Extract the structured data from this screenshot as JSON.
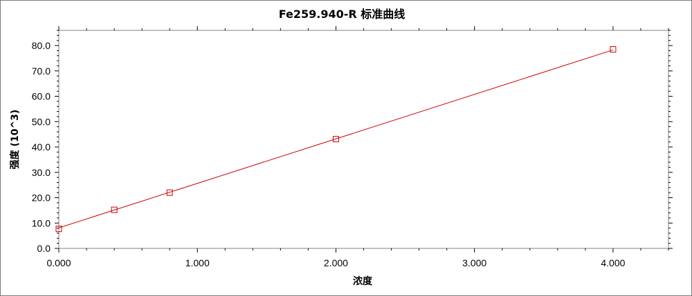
{
  "chart_data": {
    "type": "line",
    "title": "Fe259.940-R  标准曲线",
    "xlabel": "浓度",
    "ylabel": "强度 (10^3)",
    "xlim": [
      0.0,
      4.4
    ],
    "ylim": [
      0.0,
      86.0
    ],
    "x_ticks": [
      0.0,
      1.0,
      2.0,
      3.0,
      4.0
    ],
    "x_tick_labels": [
      "0.000",
      "1.000",
      "2.000",
      "3.000",
      "4.000"
    ],
    "y_ticks": [
      0,
      10,
      20,
      30,
      40,
      50,
      60,
      70,
      80
    ],
    "y_tick_labels": [
      "0.0",
      "10.0",
      "20.0",
      "30.0",
      "40.0",
      "50.0",
      "60.0",
      "70.0",
      "80.0"
    ],
    "grid": false,
    "series": [
      {
        "points": [
          [
            0.0,
            7.7
          ],
          [
            0.4,
            15.2
          ],
          [
            0.8,
            22.0
          ],
          [
            2.0,
            43.1
          ],
          [
            4.0,
            78.5
          ]
        ],
        "fit_line": [
          [
            0.0,
            8.1
          ],
          [
            4.0,
            78.3
          ]
        ],
        "color": "#cc0000",
        "marker": "open-square"
      }
    ]
  }
}
